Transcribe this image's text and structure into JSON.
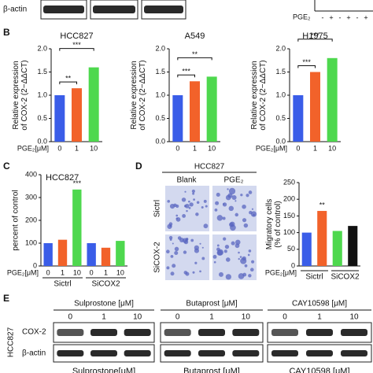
{
  "panel_labels": [
    "B",
    "C",
    "D",
    "E"
  ],
  "top": {
    "blot_label": "β-actin",
    "pge_label": "PGE₂",
    "signs": [
      "-",
      "+",
      "-",
      "+",
      "-",
      "+"
    ]
  },
  "chart_data": [
    {
      "type": "bar",
      "title": "HCC827",
      "ylabel": [
        "Relative expression",
        "of COX-2 (2−ΔΔCT)"
      ],
      "xlabel": "PGE₂[μM]",
      "categories": [
        "0",
        "1",
        "10"
      ],
      "values": [
        1.0,
        1.15,
        1.6
      ],
      "colors": [
        "#3a5de8",
        "#f2622a",
        "#4ed84e"
      ],
      "ylim": [
        0,
        2
      ],
      "yticks": [
        {
          "value": 0,
          "label": "0.0"
        },
        0.5,
        {
          "value": 1,
          "label": "1.0"
        },
        1.5,
        {
          "value": 2,
          "label": "2.0"
        }
      ],
      "brackets": [
        "**",
        "***"
      ]
    },
    {
      "type": "bar",
      "title": "A549",
      "ylabel": [
        "Relative expression",
        "of COX-2 (2−ΔΔCT)"
      ],
      "categories": [
        "0",
        "1",
        "10"
      ],
      "values": [
        1.0,
        1.3,
        1.4
      ],
      "colors": [
        "#3a5de8",
        "#f2622a",
        "#4ed84e"
      ],
      "ylim": [
        0,
        2
      ],
      "yticks": [
        {
          "value": 0,
          "label": "0.0"
        },
        0.5,
        {
          "value": 1,
          "label": "1.0"
        },
        1.5,
        {
          "value": 2,
          "label": "2.0"
        }
      ],
      "brackets": [
        "***",
        "**"
      ]
    },
    {
      "type": "bar",
      "title": "H1975",
      "ylabel": [
        "Relative expression",
        "of COX-2 (2−ΔΔCT)"
      ],
      "xlabel": "PGE₂[μM]",
      "categories": [
        "0",
        "1",
        "10"
      ],
      "values": [
        1.0,
        1.5,
        1.8
      ],
      "colors": [
        "#3a5de8",
        "#f2622a",
        "#4ed84e"
      ],
      "ylim": [
        0,
        2
      ],
      "yticks": [
        {
          "value": 0,
          "label": "0.0"
        },
        0.5,
        {
          "value": 1,
          "label": "1.0"
        },
        1.5,
        {
          "value": 2,
          "label": "2.0"
        }
      ],
      "brackets": [
        "***",
        "***"
      ]
    },
    {
      "type": "bar",
      "title": "HCC827",
      "ylabel": [
        "percent of control"
      ],
      "xlabel": "PGE₂[μM]",
      "categories": [
        "0",
        "1",
        "10",
        "0",
        "1",
        "10"
      ],
      "values": [
        100,
        115,
        335,
        100,
        80,
        110
      ],
      "colors": [
        "#3a5de8",
        "#f2622a",
        "#4ed84e",
        "#3a5de8",
        "#f2622a",
        "#4ed84e"
      ],
      "ylim": [
        0,
        400
      ],
      "yticks": [
        0,
        100,
        200,
        300,
        400
      ],
      "annotations": [
        null,
        null,
        "***",
        null,
        null,
        null
      ],
      "groups": [
        "Sictrl",
        "SiCOX2"
      ]
    },
    {
      "type": "bar",
      "ylabel": [
        "Migratory cells",
        "(% of control)"
      ],
      "xlabel": "PGE₂[μM]",
      "categories": [
        null,
        null,
        null,
        null
      ],
      "values": [
        100,
        165,
        105,
        120
      ],
      "colors": [
        "#3a5de8",
        "#f2622a",
        "#4ed84e",
        "#111111"
      ],
      "ylim": [
        0,
        250
      ],
      "yticks": [
        0,
        50,
        100,
        150,
        200,
        250
      ],
      "annotations": [
        null,
        "**",
        null,
        null
      ],
      "groups": [
        "Sictrl",
        "SiCOX2"
      ]
    }
  ],
  "panel_d": {
    "cell_line": "HCC827",
    "columns": [
      "Blank",
      "PGE₂"
    ],
    "rows": [
      "Sictrl",
      "SiCOX-2"
    ]
  },
  "panel_e": {
    "cell_line": "HCC827",
    "rows": [
      "COX-2",
      "β-actin"
    ],
    "groups": [
      {
        "title": "Sulprostone [μM]",
        "doses": [
          "0",
          "1",
          "10"
        ]
      },
      {
        "title": "Butaprost [μM]",
        "doses": [
          "0",
          "1",
          "10"
        ]
      },
      {
        "title": "CAY10598 [μM]",
        "doses": [
          "0",
          "1",
          "10"
        ]
      }
    ],
    "footer": [
      "Sulprostone[μM]",
      "Butaprost [μM]",
      "CAY10598 [μM]"
    ]
  }
}
